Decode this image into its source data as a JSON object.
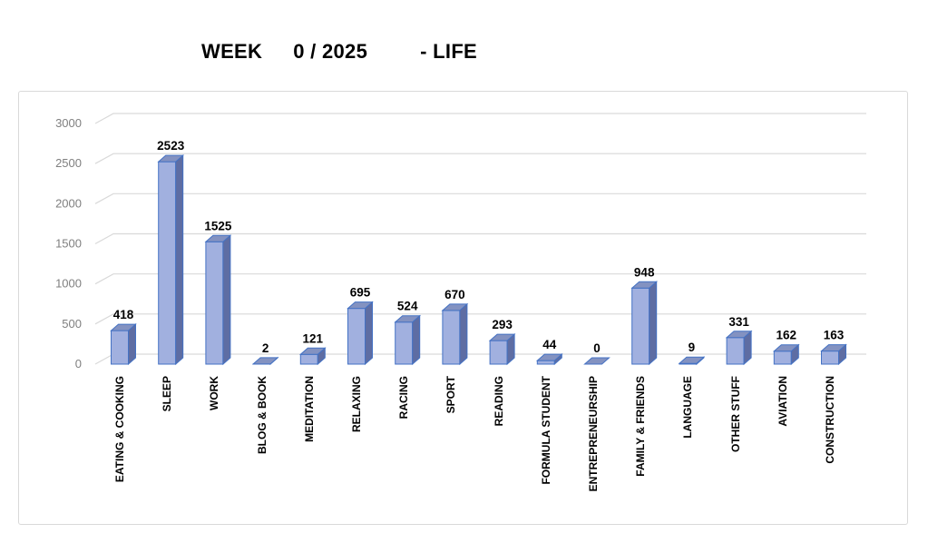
{
  "title": {
    "week_label": "WEEK",
    "week_value": "0 / 2025",
    "suffix": "- LIFE"
  },
  "chart_data": {
    "type": "bar",
    "threed": true,
    "title": "WEEK 0 / 2025 - LIFE",
    "categories": [
      "EATING & COOKING",
      "SLEEP",
      "WORK",
      "BLOG & BOOK",
      "MEDITATION",
      "RELAXING",
      "RACING",
      "SPORT",
      "READING",
      "FORMULA STUDENT",
      "ENTREPRENEURSHIP",
      "FAMILY & FRIENDS",
      "LANGUAGE",
      "OTHER STUFF",
      "AVIATION",
      "CONSTRUCTION"
    ],
    "values": [
      418,
      2523,
      1525,
      2,
      121,
      695,
      524,
      670,
      293,
      44,
      0,
      948,
      9,
      331,
      162,
      163
    ],
    "xlabel": "",
    "ylabel": "",
    "ylim": [
      0,
      3000
    ],
    "yticks": [
      0,
      500,
      1000,
      1500,
      2000,
      2500,
      3000
    ],
    "grid": true,
    "legend_position": "none",
    "data_labels": true,
    "colors": {
      "bar_front": "#A1B0DF",
      "bar_top": "#8392C1",
      "bar_side": "#5E6DA3",
      "bar_outline": "#4472C4",
      "gridline": "#D9D9D9",
      "frame_border": "#D9D9D9",
      "tick_label": "#7F7F7F",
      "data_label": "#000000",
      "category_label": "#000000",
      "title_color": "#000000",
      "background": "#FFFFFF"
    }
  }
}
